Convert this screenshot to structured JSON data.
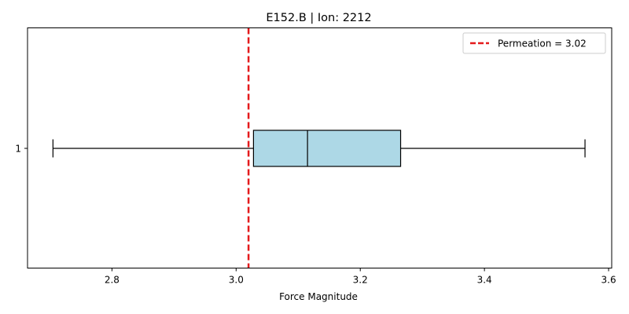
{
  "chart_data": {
    "type": "boxplot",
    "title": "E152.B | Ion: 2212",
    "xlabel": "Force Magnitude",
    "ylabel": "",
    "orientation": "horizontal",
    "xlim": [
      2.664,
      3.605
    ],
    "x_ticks": [
      2.8,
      3.0,
      3.2,
      3.4,
      3.6
    ],
    "x_tick_labels": [
      "2.8",
      "3.0",
      "3.2",
      "3.4",
      "3.6"
    ],
    "y_tick_labels": [
      "1"
    ],
    "grid": false,
    "boxes": [
      {
        "label": "1",
        "whisker_low": 2.705,
        "q1": 3.028,
        "median": 3.115,
        "q3": 3.265,
        "whisker_high": 3.562,
        "fill_color": "#add8e6"
      }
    ],
    "reference_line": {
      "value": 3.02,
      "label": "Permeation = 3.02",
      "color": "#e41a1c",
      "style": "dashed"
    },
    "legend": {
      "position": "top-right",
      "entries": [
        "Permeation = 3.02"
      ]
    }
  }
}
